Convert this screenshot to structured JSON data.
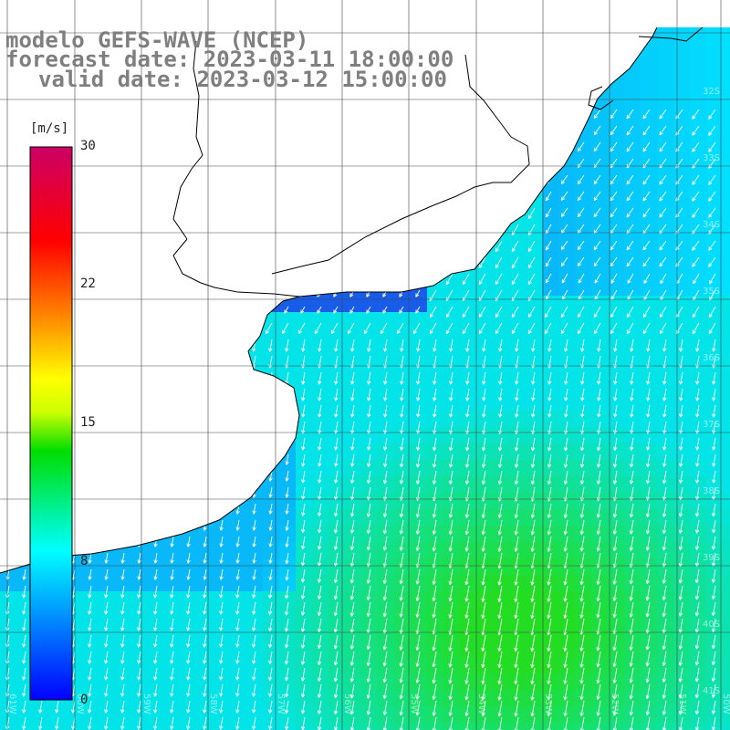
{
  "header": {
    "model": "modelo GEFS-WAVE (NCEP)",
    "forecast": "forecast date: 2023-03-11 18:00:00",
    "valid": "valid date: 2023-03-12 15:00:00"
  },
  "colorbar": {
    "unit": "[m/s]",
    "ticks": [
      "30",
      "22",
      "15",
      "8",
      "0"
    ],
    "min": 0,
    "max": 30,
    "colors": [
      "#0000ff",
      "#00ffff",
      "#00dd00",
      "#ffff00",
      "#ff8000",
      "#ff0000",
      "#cc0066"
    ]
  },
  "map": {
    "lon_labels": [
      "61W",
      "60W",
      "59W",
      "58W",
      "57W",
      "56W",
      "55W",
      "54W",
      "53W",
      "52W",
      "51W",
      "50W"
    ],
    "lat_labels": [
      "32S",
      "33S",
      "34S",
      "35S",
      "36S",
      "37S",
      "38S",
      "39S",
      "40S",
      "41S"
    ],
    "land_color": "#ffffff",
    "ocean_low_color": "#1a4ee8",
    "ocean_mid_color": "#00e5ff",
    "ocean_high_color": "#22dd22",
    "arrow_color": "#ffffff"
  }
}
